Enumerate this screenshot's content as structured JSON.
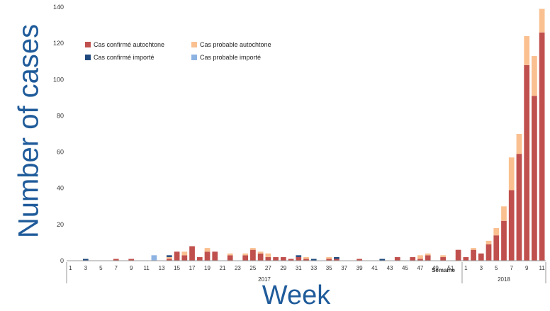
{
  "chart_data": {
    "type": "bar",
    "stacked": true,
    "ylabel": "Number of cases",
    "xlabel": "Week",
    "axis_caption": "Semaine",
    "ylim": [
      0,
      140
    ],
    "yticks": [
      0,
      20,
      40,
      60,
      80,
      100,
      120,
      140
    ],
    "ytick_labels": [
      "0",
      "20",
      "40",
      "60",
      "80",
      "100",
      "120",
      "140"
    ],
    "grid": false,
    "legend_position": "top-left",
    "groups": [
      {
        "label": "2017",
        "weeks": 52
      },
      {
        "label": "2018",
        "weeks": 11
      }
    ],
    "categories": [
      "1",
      "2",
      "3",
      "4",
      "5",
      "6",
      "7",
      "8",
      "9",
      "10",
      "11",
      "12",
      "13",
      "14",
      "15",
      "16",
      "17",
      "18",
      "19",
      "20",
      "21",
      "22",
      "23",
      "24",
      "25",
      "26",
      "27",
      "28",
      "29",
      "30",
      "31",
      "32",
      "33",
      "34",
      "35",
      "36",
      "37",
      "38",
      "39",
      "40",
      "41",
      "42",
      "43",
      "44",
      "45",
      "46",
      "47",
      "48",
      "49",
      "50",
      "51",
      "52",
      "1",
      "2",
      "3",
      "4",
      "5",
      "6",
      "7",
      "8",
      "9",
      "10",
      "11"
    ],
    "tick_labels_2017": [
      "1",
      "3",
      "5",
      "7",
      "9",
      "11",
      "13",
      "15",
      "17",
      "19",
      "21",
      "23",
      "25",
      "27",
      "29",
      "31",
      "33",
      "35",
      "37",
      "39",
      "41",
      "43",
      "45",
      "47",
      "49",
      "51"
    ],
    "tick_labels_2018": [
      "1",
      "3",
      "5",
      "7",
      "9",
      "11"
    ],
    "series": [
      {
        "name": "Cas confirmé autochtone",
        "color": "#c0504d",
        "values": [
          0,
          0,
          0,
          0,
          0,
          0,
          1,
          0,
          1,
          0,
          0,
          0,
          0,
          1,
          5,
          3,
          8,
          2,
          5,
          5,
          0,
          3,
          0,
          3,
          6,
          4,
          2,
          2,
          2,
          1,
          2,
          1,
          0,
          0,
          1,
          1,
          0,
          0,
          1,
          0,
          0,
          0,
          0,
          2,
          0,
          2,
          1,
          3,
          0,
          2,
          0,
          6,
          2,
          6,
          4,
          9,
          14,
          22,
          39,
          59,
          108,
          91,
          126
        ]
      },
      {
        "name": "Cas probable autochtone",
        "color": "#fac090",
        "values": [
          0,
          0,
          0,
          0,
          0,
          0,
          0,
          0,
          0,
          0,
          0,
          0,
          0,
          1,
          0,
          2,
          0,
          0,
          2,
          0,
          0,
          1,
          0,
          1,
          1,
          1,
          2,
          0,
          0,
          0,
          0,
          1,
          0,
          0,
          1,
          0,
          0,
          0,
          0,
          0,
          0,
          0,
          0,
          0,
          0,
          0,
          2,
          1,
          0,
          1,
          0,
          0,
          0,
          1,
          0,
          2,
          4,
          8,
          18,
          11,
          16,
          22,
          13
        ]
      },
      {
        "name": "Cas confirmé importé",
        "color": "#1f497d",
        "values": [
          0,
          0,
          1,
          0,
          0,
          0,
          0,
          0,
          0,
          0,
          0,
          0,
          0,
          1,
          0,
          0,
          0,
          0,
          0,
          0,
          0,
          0,
          0,
          0,
          0,
          0,
          0,
          0,
          0,
          0,
          1,
          0,
          1,
          0,
          0,
          1,
          0,
          0,
          0,
          0,
          0,
          1,
          0,
          0,
          0,
          0,
          0,
          0,
          0,
          0,
          0,
          0,
          0,
          0,
          0,
          0,
          0,
          0,
          0,
          0,
          0,
          0,
          0
        ]
      },
      {
        "name": "Cas probable importé",
        "color": "#8db3e2",
        "values": [
          0,
          0,
          0,
          0,
          0,
          0,
          0,
          0,
          0,
          0,
          0,
          3,
          0,
          0,
          0,
          0,
          0,
          0,
          0,
          0,
          0,
          0,
          0,
          0,
          0,
          0,
          0,
          0,
          0,
          0,
          0,
          0,
          0,
          0,
          0,
          0,
          0,
          0,
          0,
          0,
          0,
          0,
          0,
          0,
          0,
          0,
          0,
          0,
          0,
          0,
          0,
          0,
          0,
          0,
          0,
          0,
          0,
          0,
          0,
          0,
          0,
          0,
          0
        ]
      }
    ]
  }
}
